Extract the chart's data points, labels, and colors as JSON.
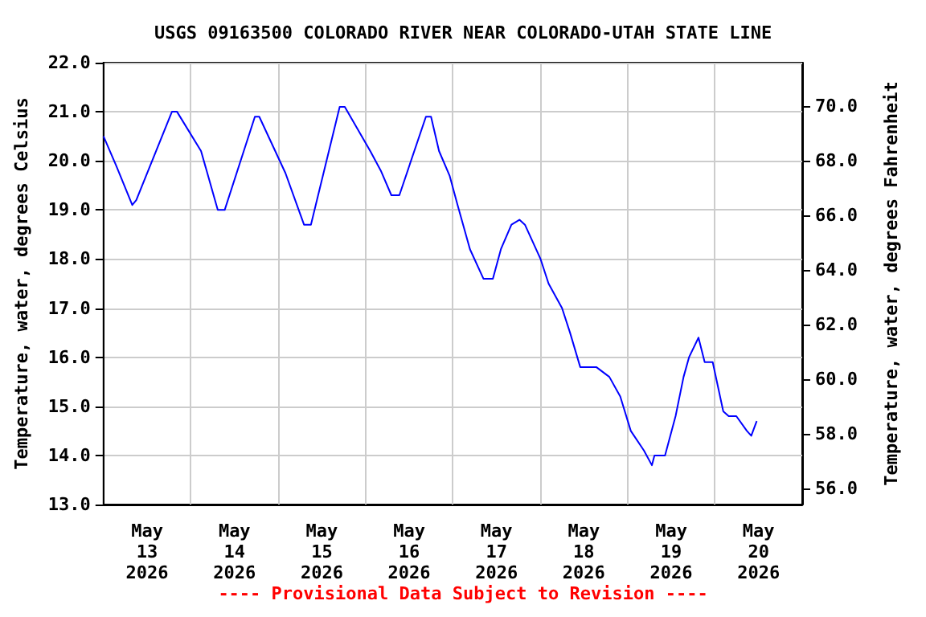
{
  "chart_data": {
    "type": "line",
    "title": "USGS 09163500 COLORADO RIVER NEAR COLORADO-UTAH STATE LINE",
    "ylabel": "Temperature, water, degrees Celsius",
    "y2label": "Temperature, water, degrees Fahrenheit",
    "annotations": [
      "---- Provisional Data Subject to Revision ----"
    ],
    "x": [
      "2026-05-13T00:00",
      "2026-05-13T03:30",
      "2026-05-13T07:54",
      "2026-05-13T09:00",
      "2026-05-13T18:48",
      "2026-05-13T20:12",
      "2026-05-14T02:48",
      "2026-05-14T07:24",
      "2026-05-14T09:18",
      "2026-05-14T17:36",
      "2026-05-14T18:48",
      "2026-05-15T02:00",
      "2026-05-15T07:06",
      "2026-05-15T09:00",
      "2026-05-15T16:54",
      "2026-05-15T18:18",
      "2026-05-16T01:18",
      "2026-05-16T04:12",
      "2026-05-16T07:06",
      "2026-05-16T09:18",
      "2026-05-16T16:36",
      "2026-05-16T18:00",
      "2026-05-16T20:12",
      "2026-05-16T23:06",
      "2026-05-17T01:18",
      "2026-05-17T04:42",
      "2026-05-17T08:24",
      "2026-05-17T11:00",
      "2026-05-17T13:12",
      "2026-05-17T16:06",
      "2026-05-17T18:18",
      "2026-05-17T19:48",
      "2026-05-18T00:06",
      "2026-05-18T02:18",
      "2026-05-18T06:00",
      "2026-05-18T08:12",
      "2026-05-18T11:00",
      "2026-05-18T13:12",
      "2026-05-18T15:24",
      "2026-05-18T19:00",
      "2026-05-18T22:00",
      "2026-05-19T00:54",
      "2026-05-19T04:30",
      "2026-05-19T06:42",
      "2026-05-19T07:24",
      "2026-05-19T10:18",
      "2026-05-19T13:12",
      "2026-05-19T15:24",
      "2026-05-19T16:54",
      "2026-05-19T19:30",
      "2026-05-19T21:12",
      "2026-05-19T23:24",
      "2026-05-20T02:18",
      "2026-05-20T03:48",
      "2026-05-20T05:54",
      "2026-05-20T08:48",
      "2026-05-20T10:00",
      "2026-05-20T11:30"
    ],
    "series": [
      {
        "color": "#0000ff",
        "values": [
          20.5,
          19.9,
          19.1,
          19.2,
          21.0,
          21.0,
          20.2,
          19.0,
          19.0,
          20.9,
          20.9,
          19.75,
          18.7,
          18.7,
          21.1,
          21.1,
          20.2,
          19.8,
          19.3,
          19.3,
          20.9,
          20.9,
          20.2,
          19.7,
          19.1,
          18.2,
          17.6,
          17.6,
          18.2,
          18.7,
          18.8,
          18.7,
          18.0,
          17.5,
          17.0,
          16.5,
          15.8,
          15.8,
          15.8,
          15.6,
          15.2,
          14.5,
          14.1,
          13.8,
          14.0,
          14.0,
          14.8,
          15.6,
          16.0,
          16.4,
          15.9,
          15.9,
          14.9,
          14.8,
          14.8,
          14.5,
          14.4,
          14.7
        ]
      }
    ],
    "xlim": [
      "2026-05-13T00:00",
      "2026-05-21T00:00"
    ],
    "xticks": [
      {
        "value": "2026-05-13T00:00",
        "label": null
      },
      {
        "value": "2026-05-14T00:00",
        "label": null
      },
      {
        "value": "2026-05-15T00:00",
        "label": null
      },
      {
        "value": "2026-05-16T00:00",
        "label": null
      },
      {
        "value": "2026-05-17T00:00",
        "label": null
      },
      {
        "value": "2026-05-18T00:00",
        "label": null
      },
      {
        "value": "2026-05-19T00:00",
        "label": null
      },
      {
        "value": "2026-05-20T00:00",
        "label": null
      },
      {
        "value": "2026-05-21T00:00",
        "label": null
      },
      {
        "value": "2026-05-13T12:00",
        "label": "May\n13\n2026"
      },
      {
        "value": "2026-05-14T12:00",
        "label": "May\n14\n2026"
      },
      {
        "value": "2026-05-15T12:00",
        "label": "May\n15\n2026"
      },
      {
        "value": "2026-05-16T12:00",
        "label": "May\n16\n2026"
      },
      {
        "value": "2026-05-17T12:00",
        "label": "May\n17\n2026"
      },
      {
        "value": "2026-05-18T12:00",
        "label": "May\n18\n2026"
      },
      {
        "value": "2026-05-19T12:00",
        "label": "May\n19\n2026"
      },
      {
        "value": "2026-05-20T12:00",
        "label": "May\n20\n2026"
      }
    ],
    "ylim": [
      13,
      22
    ],
    "yticks": [
      {
        "value": 13,
        "label": "13.0"
      },
      {
        "value": 14,
        "label": "14.0"
      },
      {
        "value": 15,
        "label": "15.0"
      },
      {
        "value": 16,
        "label": "16.0"
      },
      {
        "value": 17,
        "label": "17.0"
      },
      {
        "value": 18,
        "label": "18.0"
      },
      {
        "value": 19,
        "label": "19.0"
      },
      {
        "value": 20,
        "label": "20.0"
      },
      {
        "value": 21,
        "label": "21.0"
      },
      {
        "value": 22,
        "label": "22.0"
      }
    ],
    "y2lim": [
      55.4,
      71.6
    ],
    "y2ticks": [
      {
        "value": 56,
        "label": "56.0"
      },
      {
        "value": 58,
        "label": "58.0"
      },
      {
        "value": 60,
        "label": "60.0"
      },
      {
        "value": 62,
        "label": "62.0"
      },
      {
        "value": 64,
        "label": "64.0"
      },
      {
        "value": 66,
        "label": "66.0"
      },
      {
        "value": 68,
        "label": "68.0"
      },
      {
        "value": 70,
        "label": "70.0"
      }
    ],
    "grid": true,
    "marker": "none"
  }
}
